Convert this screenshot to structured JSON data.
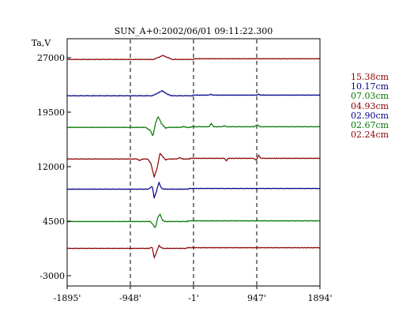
{
  "chart_data": {
    "type": "line",
    "title": "SUN_A+0:2002/06/01 09:11:22.300",
    "ylabel": "Ta,V",
    "xlabel": "",
    "xlim": [
      -1895,
      1894
    ],
    "ylim": [
      -3000,
      27000
    ],
    "y_ticks": [
      {
        "value": -3000,
        "label": "-3000"
      },
      {
        "value": 4500,
        "label": "4500"
      },
      {
        "value": 12000,
        "label": "12000"
      },
      {
        "value": 19500,
        "label": "19500"
      },
      {
        "value": 27000,
        "label": "27000"
      }
    ],
    "x_ticks": [
      {
        "value": -1895,
        "label": "-1895'"
      },
      {
        "value": -948,
        "label": "-948'"
      },
      {
        "value": -1,
        "label": "-1'"
      },
      {
        "value": 947,
        "label": "947'"
      },
      {
        "value": 1894,
        "label": "1894'"
      }
    ],
    "x_gridlines": [
      -948,
      -1,
      947
    ],
    "grid": "vertical dashed at inner x ticks",
    "legend_position": "right",
    "series": [
      {
        "name": "15.38cm",
        "color": "#8b0000",
        "baseline": 26850,
        "points": [
          [
            -1895,
            0
          ],
          [
            -600,
            0
          ],
          [
            -520,
            300
          ],
          [
            -460,
            550
          ],
          [
            -400,
            300
          ],
          [
            -320,
            0
          ],
          [
            1894,
            0
          ]
        ]
      },
      {
        "name": "10.17cm",
        "color": "#00008b",
        "baseline": 21850,
        "points": [
          [
            -1895,
            0
          ],
          [
            -620,
            0
          ],
          [
            -550,
            300
          ],
          [
            -470,
            700
          ],
          [
            -400,
            250
          ],
          [
            -330,
            0
          ],
          [
            232,
            0
          ],
          [
            260,
            120
          ],
          [
            290,
            0
          ],
          [
            958,
            0
          ],
          [
            975,
            200
          ],
          [
            992,
            0
          ],
          [
            1894,
            0
          ]
        ]
      },
      {
        "name": "07.03cm",
        "color": "#007700",
        "baseline": 17500,
        "points": [
          [
            -1895,
            0
          ],
          [
            -720,
            0
          ],
          [
            -650,
            -400
          ],
          [
            -610,
            -1200
          ],
          [
            -570,
            600
          ],
          [
            -530,
            1500
          ],
          [
            -480,
            500
          ],
          [
            -420,
            -100
          ],
          [
            -380,
            0
          ],
          [
            -200,
            0
          ],
          [
            -150,
            100
          ],
          [
            -100,
            0
          ],
          [
            232,
            0
          ],
          [
            265,
            450
          ],
          [
            300,
            0
          ],
          [
            430,
            0
          ],
          [
            460,
            150
          ],
          [
            490,
            0
          ],
          [
            900,
            0
          ],
          [
            958,
            250
          ],
          [
            990,
            0
          ],
          [
            1894,
            0
          ]
        ]
      },
      {
        "name": "04.93cm",
        "color": "#8b0000",
        "baseline": 13150,
        "points": [
          [
            -1895,
            0
          ],
          [
            -850,
            0
          ],
          [
            -810,
            -200
          ],
          [
            -760,
            0
          ],
          [
            -690,
            0
          ],
          [
            -640,
            -600
          ],
          [
            -590,
            -2500
          ],
          [
            -545,
            -1200
          ],
          [
            -505,
            800
          ],
          [
            -460,
            300
          ],
          [
            -420,
            -100
          ],
          [
            -370,
            0
          ],
          [
            -250,
            0
          ],
          [
            -210,
            200
          ],
          [
            -170,
            0
          ],
          [
            465,
            0
          ],
          [
            490,
            -350
          ],
          [
            520,
            0
          ],
          [
            900,
            0
          ],
          [
            940,
            -250
          ],
          [
            975,
            400
          ],
          [
            1010,
            0
          ],
          [
            1894,
            0
          ]
        ]
      },
      {
        "name": "02.90cm",
        "color": "#00008b",
        "baseline": 9000,
        "points": [
          [
            -1895,
            0
          ],
          [
            -680,
            0
          ],
          [
            -620,
            400
          ],
          [
            -590,
            -1200
          ],
          [
            -560,
            -400
          ],
          [
            -520,
            900
          ],
          [
            -480,
            100
          ],
          [
            -440,
            0
          ],
          [
            1894,
            0
          ]
        ]
      },
      {
        "name": "02.67cm",
        "color": "#007700",
        "baseline": 4550,
        "points": [
          [
            -1895,
            0
          ],
          [
            -650,
            0
          ],
          [
            -610,
            -400
          ],
          [
            -575,
            -900
          ],
          [
            -535,
            600
          ],
          [
            -500,
            1000
          ],
          [
            -470,
            200
          ],
          [
            -430,
            0
          ],
          [
            1894,
            0
          ]
        ]
      },
      {
        "name": "02.24cm",
        "color": "#8b0000",
        "baseline": 850,
        "points": [
          [
            -1895,
            0
          ],
          [
            -660,
            0
          ],
          [
            -620,
            200
          ],
          [
            -590,
            -1300
          ],
          [
            -555,
            -500
          ],
          [
            -520,
            400
          ],
          [
            -485,
            100
          ],
          [
            -450,
            0
          ],
          [
            1894,
            0
          ]
        ]
      }
    ]
  }
}
